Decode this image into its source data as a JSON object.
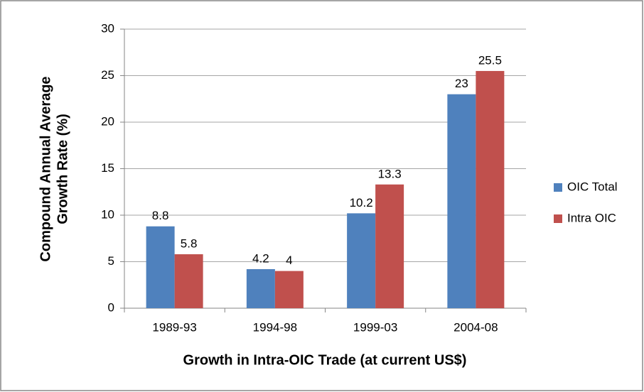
{
  "chart_data": {
    "type": "bar",
    "categories": [
      "1989-93",
      "1994-98",
      "1999-03",
      "2004-08"
    ],
    "series": [
      {
        "name": "OIC Total",
        "color": "#4f81bd",
        "values": [
          8.8,
          4.2,
          10.2,
          23
        ]
      },
      {
        "name": "Intra OIC",
        "color": "#c0504d",
        "values": [
          5.8,
          4,
          13.3,
          25.5
        ]
      }
    ],
    "xlabel": "Growth in Intra-OIC Trade (at current US$)",
    "ylabel": [
      "Compound  Annual Average",
      "Growth Rate (%)"
    ],
    "ylim": [
      0,
      30
    ],
    "yticks": [
      0,
      5,
      10,
      15,
      20,
      25,
      30
    ],
    "grid": true,
    "legend": "right"
  }
}
